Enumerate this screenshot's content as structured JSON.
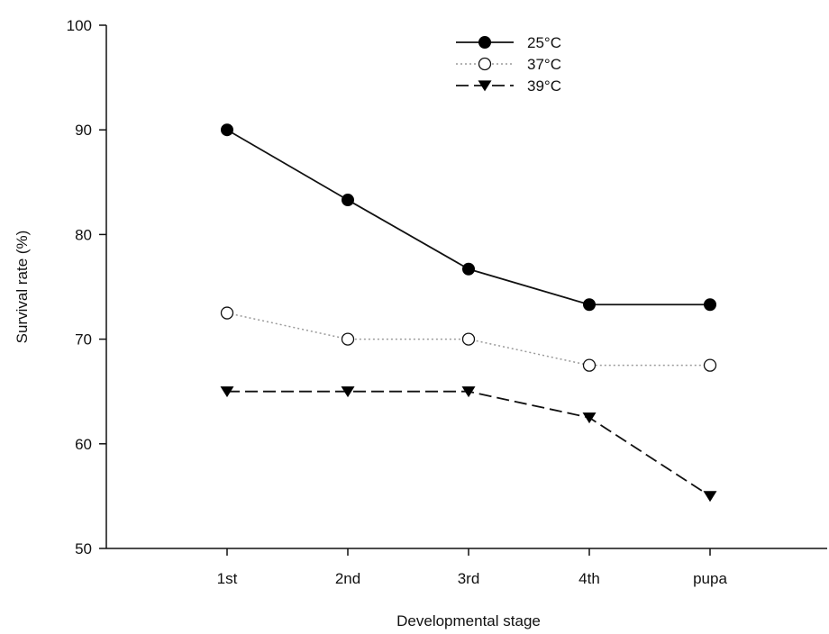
{
  "chart_data": {
    "type": "line",
    "categories": [
      "1st",
      "2nd",
      "3rd",
      "4th",
      "pupa"
    ],
    "xlabel": "Developmental stage",
    "ylabel": "Survival rate (%)",
    "ylim": [
      50,
      100
    ],
    "yticks": [
      50,
      60,
      70,
      80,
      90,
      100
    ],
    "grid": false,
    "legend_position": "top-center",
    "series": [
      {
        "name": "25°C",
        "values": [
          90,
          83.3,
          76.7,
          73.3,
          73.3
        ],
        "marker": "filled-circle",
        "line_style": "solid",
        "color": "#111111"
      },
      {
        "name": "37°C",
        "values": [
          72.5,
          70,
          70,
          67.5,
          67.5
        ],
        "marker": "open-circle",
        "line_style": "dotted",
        "color": "#9a9a9a"
      },
      {
        "name": "39°C",
        "values": [
          65,
          65,
          65,
          62.5,
          55
        ],
        "marker": "filled-triangle-down",
        "line_style": "dashed",
        "color": "#111111"
      }
    ]
  }
}
